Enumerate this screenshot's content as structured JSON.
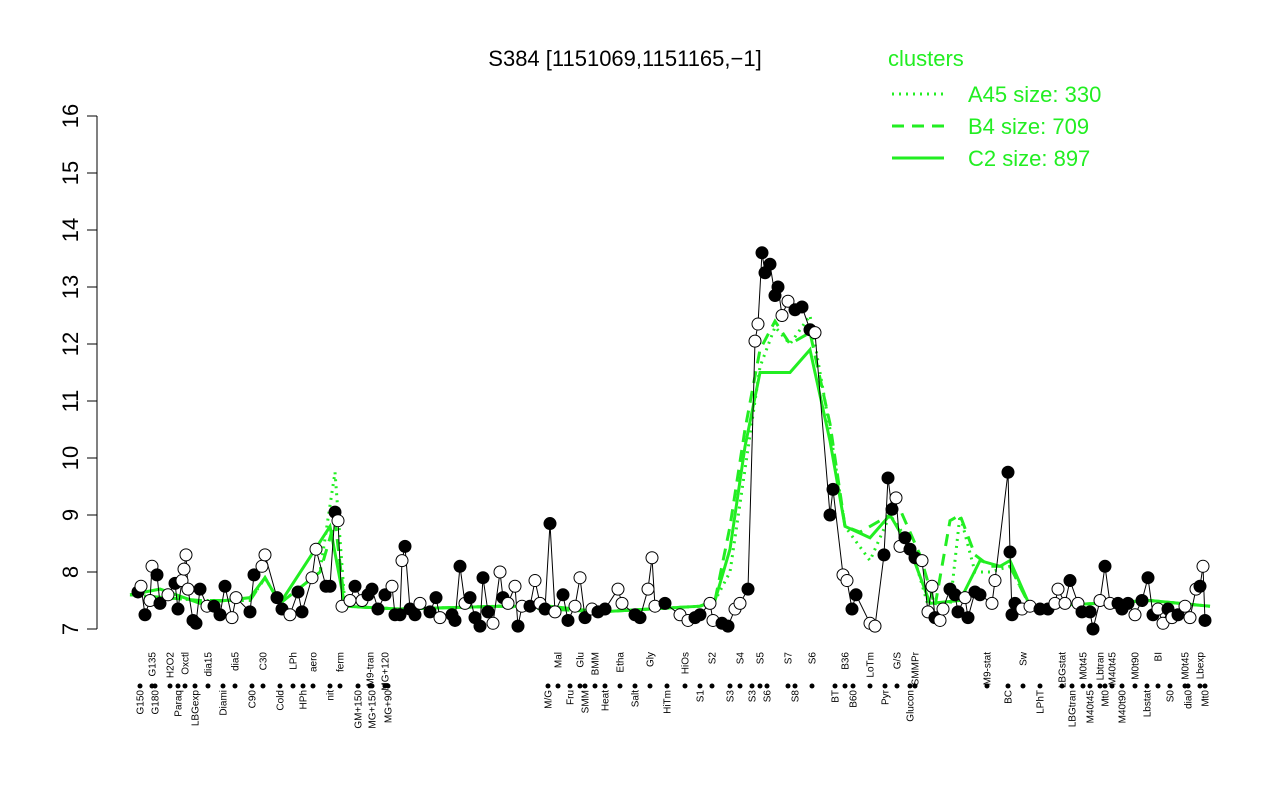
{
  "chart_data": {
    "type": "scatter",
    "title": "S384 [1151069,1151165,−1]",
    "ylim": [
      7,
      16
    ],
    "yticks": [
      7,
      8,
      9,
      10,
      11,
      12,
      13,
      14,
      15,
      16
    ],
    "xlim": [
      130,
      1215
    ],
    "legend_title": "clusters",
    "legend_color": "#22ee22",
    "point_x": [
      138,
      141,
      145,
      150,
      152,
      157,
      160,
      168,
      175,
      178,
      182,
      184,
      186,
      188,
      193,
      196,
      200,
      207,
      214,
      220,
      225,
      232,
      236,
      250,
      254,
      262,
      265,
      277,
      282,
      290,
      298,
      302,
      312,
      316,
      326,
      330,
      335,
      338,
      342,
      350,
      355,
      362,
      368,
      372,
      378,
      385,
      392,
      395,
      400,
      402,
      405,
      410,
      415,
      420,
      430,
      436,
      440,
      452,
      455,
      460,
      465,
      470,
      475,
      480,
      483,
      488,
      493,
      500,
      503,
      508,
      515,
      518,
      522,
      530,
      535,
      540,
      545,
      550,
      555,
      563,
      568,
      575,
      580,
      585,
      592,
      598,
      605,
      618,
      622,
      635,
      640,
      648,
      652,
      655,
      665,
      680,
      688,
      695,
      700,
      710,
      713,
      722,
      728,
      735,
      740,
      748,
      755,
      758,
      762,
      765,
      770,
      775,
      778,
      782,
      788,
      795,
      802,
      810,
      815,
      830,
      833,
      843,
      847,
      852,
      856,
      870,
      875,
      884,
      888,
      892,
      896,
      900,
      905,
      910,
      915,
      922,
      928,
      932,
      935,
      940,
      943,
      950,
      955,
      958,
      965,
      968,
      975,
      980,
      992,
      995,
      1008,
      1010,
      1012,
      1015,
      1022,
      1030,
      1040,
      1048,
      1055,
      1058,
      1065,
      1070,
      1078,
      1082,
      1090,
      1093,
      1100,
      1105,
      1110,
      1118,
      1122,
      1128,
      1135,
      1142,
      1148,
      1153,
      1158,
      1163,
      1168,
      1172,
      1178,
      1185,
      1190,
      1196,
      1200,
      1203,
      1205
    ],
    "point_values": [
      7.65,
      7.75,
      7.25,
      7.5,
      8.1,
      7.95,
      7.45,
      7.6,
      7.8,
      7.35,
      7.85,
      8.05,
      8.3,
      7.7,
      7.15,
      7.1,
      7.7,
      7.4,
      7.4,
      7.25,
      7.75,
      7.2,
      7.55,
      7.3,
      7.95,
      8.1,
      8.3,
      7.55,
      7.35,
      7.25,
      7.65,
      7.3,
      7.9,
      8.4,
      7.75,
      7.75,
      9.05,
      8.9,
      7.4,
      7.5,
      7.75,
      7.5,
      7.6,
      7.7,
      7.35,
      7.6,
      7.75,
      7.25,
      7.25,
      8.2,
      8.45,
      7.35,
      7.25,
      7.45,
      7.3,
      7.55,
      7.2,
      7.25,
      7.15,
      8.1,
      7.45,
      7.55,
      7.2,
      7.05,
      7.9,
      7.3,
      7.1,
      8.0,
      7.55,
      7.45,
      7.75,
      7.05,
      7.4,
      7.4,
      7.85,
      7.45,
      7.35,
      8.85,
      7.3,
      7.6,
      7.15,
      7.4,
      7.9,
      7.2,
      7.35,
      7.3,
      7.35,
      7.7,
      7.45,
      7.25,
      7.2,
      7.7,
      8.25,
      7.4,
      7.45,
      7.25,
      7.15,
      7.2,
      7.25,
      7.45,
      7.15,
      7.1,
      7.05,
      7.35,
      7.45,
      7.7,
      12.05,
      12.35,
      13.6,
      13.25,
      13.4,
      12.85,
      13.0,
      12.5,
      12.75,
      12.6,
      12.65,
      12.25,
      12.2,
      9.0,
      9.45,
      7.95,
      7.85,
      7.35,
      7.6,
      7.1,
      7.05,
      8.3,
      9.65,
      9.1,
      9.3,
      8.45,
      8.6,
      8.4,
      8.25,
      8.2,
      7.3,
      7.75,
      7.2,
      7.15,
      7.35,
      7.7,
      7.6,
      7.3,
      7.55,
      7.2,
      7.65,
      7.6,
      7.45,
      7.85,
      9.75,
      8.35,
      7.25,
      7.45,
      7.35,
      7.4,
      7.35,
      7.35,
      7.45,
      7.7,
      7.45,
      7.85,
      7.45,
      7.3,
      7.3,
      7.0,
      7.5,
      8.1,
      7.45,
      7.45,
      7.35,
      7.45,
      7.25,
      7.5,
      7.9,
      7.25,
      7.35,
      7.1,
      7.35,
      7.2,
      7.25,
      7.4,
      7.2,
      7.7,
      7.75,
      8.1,
      7.15
    ],
    "point_filled": [
      1,
      0,
      1,
      0,
      0,
      1,
      1,
      0,
      1,
      1,
      0,
      0,
      0,
      0,
      1,
      1,
      1,
      0,
      1,
      1,
      1,
      0,
      0,
      1,
      1,
      0,
      0,
      1,
      1,
      0,
      1,
      1,
      0,
      0,
      1,
      1,
      1,
      0,
      0,
      0,
      1,
      0,
      1,
      1,
      1,
      1,
      0,
      1,
      1,
      0,
      1,
      1,
      1,
      0,
      1,
      1,
      0,
      1,
      1,
      1,
      0,
      1,
      1,
      1,
      1,
      1,
      0,
      0,
      1,
      0,
      0,
      1,
      0,
      1,
      0,
      0,
      1,
      1,
      0,
      1,
      1,
      0,
      0,
      1,
      0,
      1,
      1,
      0,
      0,
      1,
      1,
      0,
      0,
      0,
      1,
      0,
      0,
      1,
      1,
      0,
      0,
      1,
      1,
      0,
      0,
      1,
      0,
      0,
      1,
      1,
      1,
      1,
      1,
      0,
      0,
      1,
      1,
      1,
      0,
      1,
      1,
      0,
      0,
      1,
      1,
      0,
      0,
      1,
      1,
      1,
      0,
      0,
      1,
      1,
      1,
      0,
      0,
      0,
      1,
      0,
      0,
      1,
      1,
      1,
      0,
      1,
      1,
      1,
      0,
      0,
      1,
      1,
      1,
      1,
      0,
      0,
      1,
      1,
      0,
      0,
      0,
      1,
      0,
      1,
      1,
      1,
      0,
      1,
      0,
      1,
      1,
      1,
      0,
      1,
      1,
      1,
      0,
      0,
      1,
      0,
      1,
      0,
      0,
      0,
      1,
      0,
      1
    ],
    "series": [
      {
        "name": "A45 size: 330",
        "color": "#22ee22",
        "dash": "2,5",
        "x": [
          130,
          200,
          250,
          265,
          280,
          320,
          335,
          345,
          400,
          500,
          600,
          700,
          715,
          730,
          745,
          760,
          775,
          790,
          810,
          830,
          845,
          870,
          890,
          910,
          930,
          950,
          960,
          975,
          990,
          1010,
          1030,
          1100,
          1150,
          1210
        ],
        "values": [
          7.6,
          7.5,
          7.5,
          7.9,
          7.45,
          8.0,
          9.75,
          7.4,
          7.35,
          7.4,
          7.3,
          7.4,
          7.5,
          8.0,
          9.8,
          11.6,
          12.3,
          12.0,
          12.5,
          10.5,
          8.8,
          8.2,
          9.0,
          8.5,
          7.3,
          7.4,
          9.0,
          8.0,
          8.0,
          8.1,
          7.4,
          7.45,
          7.5,
          7.4
        ]
      },
      {
        "name": "B4 size: 709",
        "color": "#22ee22",
        "dash": "12,8",
        "x": [
          130,
          200,
          250,
          265,
          280,
          320,
          335,
          345,
          400,
          500,
          600,
          700,
          715,
          730,
          745,
          760,
          775,
          790,
          810,
          830,
          845,
          860,
          880,
          900,
          920,
          935,
          950,
          960,
          975,
          990,
          1010,
          1030,
          1100,
          1150,
          1210
        ],
        "values": [
          7.6,
          7.5,
          7.5,
          7.9,
          7.45,
          8.0,
          8.9,
          7.4,
          7.35,
          7.4,
          7.3,
          7.4,
          7.5,
          8.8,
          10.5,
          11.9,
          12.4,
          12.0,
          12.2,
          10.6,
          8.8,
          8.7,
          8.9,
          9.1,
          8.3,
          7.4,
          8.9,
          9.0,
          8.3,
          8.1,
          8.1,
          7.4,
          7.45,
          7.5,
          7.4
        ]
      },
      {
        "name": "C2 size: 897",
        "color": "#22ee22",
        "dash": "",
        "x": [
          130,
          160,
          200,
          250,
          265,
          280,
          330,
          345,
          400,
          500,
          550,
          600,
          700,
          715,
          730,
          745,
          760,
          775,
          790,
          810,
          830,
          845,
          870,
          890,
          910,
          930,
          960,
          980,
          1000,
          1010,
          1030,
          1100,
          1150,
          1210
        ],
        "values": [
          7.6,
          7.7,
          7.45,
          7.55,
          7.9,
          7.45,
          8.8,
          7.4,
          7.35,
          7.4,
          7.4,
          7.3,
          7.4,
          7.5,
          8.4,
          10.2,
          11.5,
          11.5,
          11.5,
          11.9,
          10.3,
          8.8,
          8.6,
          9.0,
          8.4,
          7.45,
          7.5,
          8.2,
          8.1,
          8.2,
          7.4,
          7.45,
          7.5,
          7.4
        ]
      }
    ],
    "label_x": [
      152,
      170,
      185,
      208,
      235,
      263,
      293,
      313,
      340,
      370,
      385,
      558,
      580,
      595,
      620,
      650,
      685,
      712,
      740,
      760,
      788,
      812,
      845,
      870,
      897,
      915,
      987,
      1023,
      1062,
      1083,
      1100,
      1112,
      1135,
      1158,
      1185,
      1200,
      140,
      155,
      178,
      195,
      223,
      252,
      280,
      303,
      330,
      358,
      372,
      388,
      548,
      570,
      585,
      605,
      635,
      667,
      700,
      730,
      752,
      767,
      795,
      835,
      853,
      885,
      910,
      1008,
      1040,
      1072,
      1090,
      1105,
      1122,
      1147,
      1170,
      1188,
      1205
    ],
    "label_row": [
      0,
      0,
      0,
      0,
      0,
      0,
      0,
      0,
      0,
      0,
      0,
      0,
      0,
      0,
      0,
      0,
      0,
      0,
      0,
      0,
      0,
      0,
      0,
      0,
      0,
      0,
      0,
      0,
      0,
      0,
      0,
      0,
      0,
      0,
      0,
      0,
      1,
      1,
      1,
      1,
      1,
      1,
      1,
      1,
      1,
      1,
      1,
      1,
      1,
      1,
      1,
      1,
      1,
      1,
      1,
      1,
      1,
      1,
      1,
      1,
      1,
      1,
      1,
      1,
      1,
      1,
      1,
      1,
      1,
      1,
      1,
      1,
      1
    ],
    "labels": [
      "G135",
      "H2O2",
      "Oxctl",
      "dia15",
      "dia5",
      "C30",
      "LPh",
      "aero",
      "ferm",
      "M9-tran",
      "MG+120",
      "Mal",
      "Glu",
      "BMM",
      "Etha",
      "Gly",
      "HiOs",
      "S2",
      "S4",
      "S5",
      "S7",
      "S6",
      "B36",
      "LoTm",
      "G/S",
      "SMMPr",
      "M9-stat",
      "Sw",
      "LBGstat",
      "M0t45",
      "Lbtran",
      "M40t45",
      "M0t90",
      "BI",
      "M0t45",
      "Lbexp",
      "G150",
      "G180",
      "Paraq",
      "LBGexp",
      "Diami",
      "C90",
      "Cold",
      "HPh",
      "nit",
      "GM+150",
      "MG+150",
      "MG+90",
      "M/G",
      "Fru",
      "SMM",
      "Heat",
      "Salt",
      "HiTm",
      "S1",
      "S3",
      "S3",
      "S6",
      "S8",
      "BT",
      "B60",
      "Pyr",
      "Glucon",
      "BC",
      "LPhT",
      "LBGtran",
      "M40t45",
      "Mt0",
      "M40t90",
      "Lbstat",
      "S0",
      "dia0",
      "Mt0"
    ]
  }
}
